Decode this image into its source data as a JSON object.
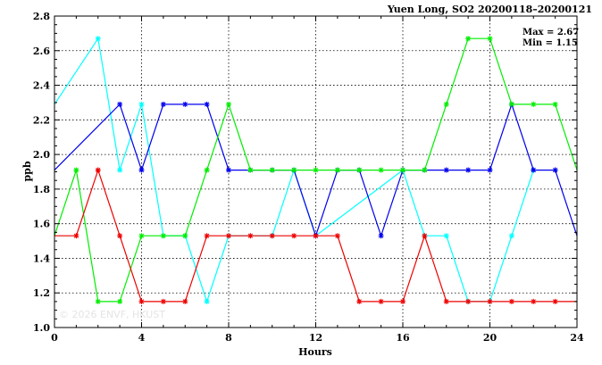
{
  "chart_data": {
    "type": "line",
    "title": "Yuen Long, SO2 20200118–20200121",
    "xlabel": "Hours",
    "ylabel": "ppb",
    "xlim": [
      0,
      24
    ],
    "ylim": [
      1.0,
      2.8
    ],
    "x_ticks": [
      "0",
      "4",
      "8",
      "12",
      "16",
      "20",
      "24"
    ],
    "y_ticks": [
      "1.0",
      "1.2",
      "1.4",
      "1.6",
      "1.8",
      "2.0",
      "2.2",
      "2.4",
      "2.6",
      "2.8"
    ],
    "grid": true,
    "annotations": {
      "max_label": "Max = 2.67",
      "min_label": "Min = 1.15"
    },
    "watermark": "© 2026 ENVF, HKUST",
    "x": [
      0,
      1,
      2,
      3,
      4,
      5,
      6,
      7,
      8,
      9,
      10,
      11,
      12,
      13,
      14,
      15,
      16,
      17,
      18,
      19,
      20,
      21,
      22,
      23,
      24
    ],
    "series": [
      {
        "color": "#00ffff",
        "values": [
          2.29,
          null,
          2.67,
          1.91,
          2.29,
          1.53,
          1.53,
          1.15,
          1.53,
          null,
          1.53,
          1.91,
          1.53,
          null,
          null,
          null,
          1.91,
          1.53,
          1.53,
          1.15,
          1.15,
          1.53,
          1.91,
          null,
          null
        ]
      },
      {
        "color": "#0000ee",
        "values": [
          1.91,
          null,
          null,
          2.29,
          1.91,
          2.29,
          2.29,
          2.29,
          1.91,
          1.91,
          1.91,
          1.91,
          1.53,
          1.91,
          1.91,
          1.53,
          1.91,
          1.91,
          1.91,
          1.91,
          1.91,
          2.29,
          1.91,
          1.91,
          1.53
        ]
      },
      {
        "color": "#00ee00",
        "values": [
          1.53,
          1.91,
          1.15,
          1.15,
          1.53,
          1.53,
          1.53,
          1.91,
          2.29,
          1.91,
          1.91,
          1.91,
          1.91,
          1.91,
          1.91,
          1.91,
          1.91,
          1.91,
          2.29,
          2.67,
          2.67,
          2.29,
          2.29,
          2.29,
          1.91
        ]
      },
      {
        "color": "#ee0000",
        "values": [
          1.53,
          1.53,
          1.91,
          1.53,
          1.15,
          1.15,
          1.15,
          1.53,
          1.53,
          1.53,
          1.53,
          1.53,
          1.53,
          1.53,
          1.15,
          1.15,
          1.15,
          1.53,
          1.15,
          1.15,
          1.15,
          1.15,
          1.15,
          1.15,
          1.15
        ]
      }
    ]
  }
}
